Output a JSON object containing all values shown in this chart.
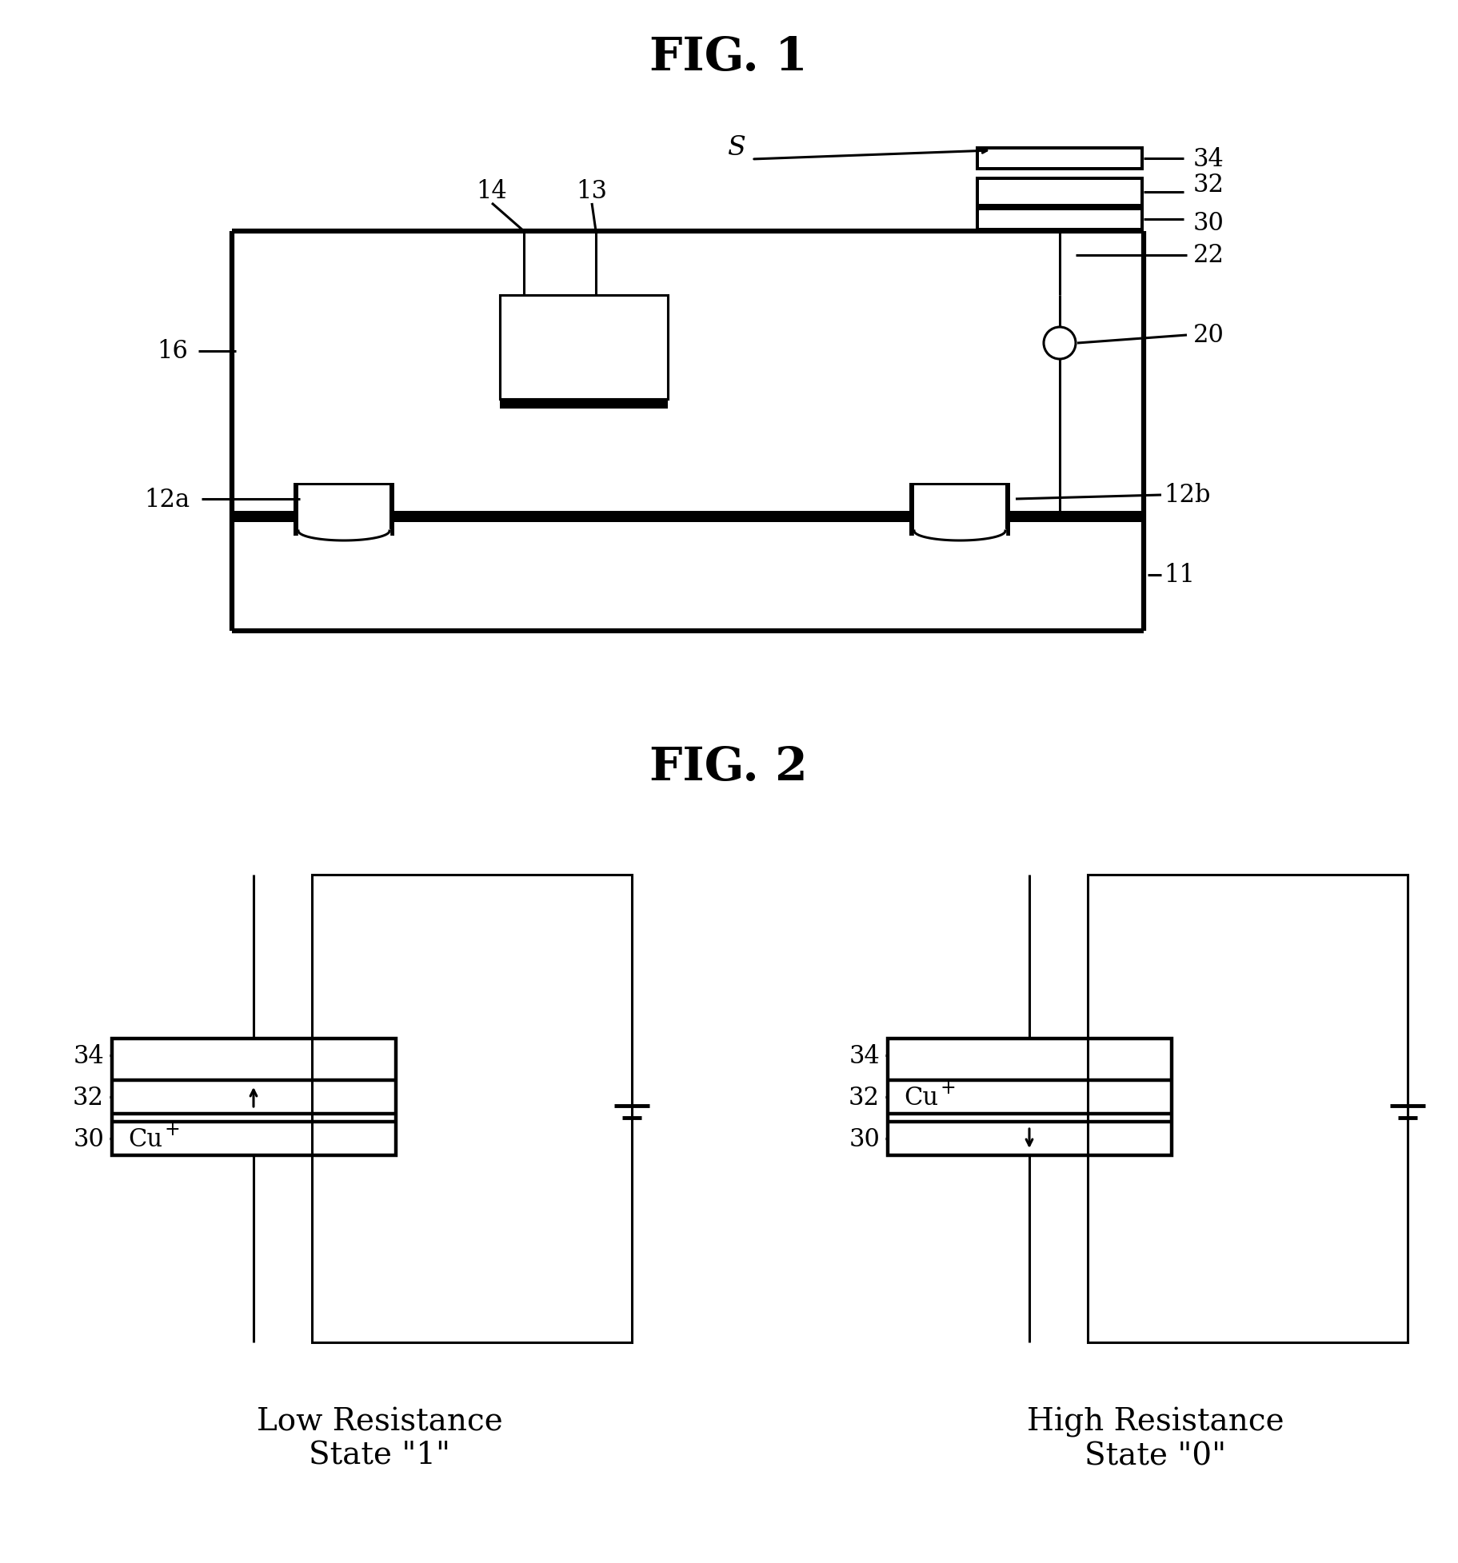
{
  "fig1_title": "FIG. 1",
  "fig2_title": "FIG. 2",
  "background": "#ffffff",
  "line_color": "#000000",
  "lw": 2.2,
  "thick_lw": 4.5,
  "label_fontsize": 22,
  "title_fontsize": 42,
  "caption_fontsize": 28,
  "low_resistance_label": "Low Resistance\nState \"1\"",
  "high_resistance_label": "High Resistance\nState \"0\""
}
